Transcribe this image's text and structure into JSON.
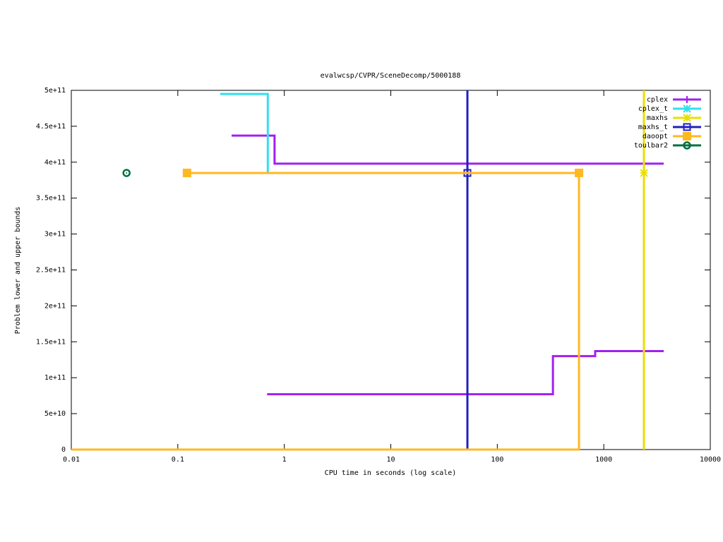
{
  "chart_data": {
    "type": "line",
    "title": "evalwcsp/CVPR/SceneDecomp/5000188",
    "xlabel": "CPU time in seconds (log scale)",
    "ylabel": "Problem lower and upper bounds",
    "xscale": "log",
    "xlim": [
      0.01,
      10000
    ],
    "xticks": [
      0.01,
      0.1,
      1,
      10,
      100,
      1000,
      10000
    ],
    "ylim": [
      0,
      500000000000
    ],
    "yticks": [
      0,
      {
        "value": 50000000000,
        "label": "5e+10"
      },
      {
        "value": 100000000000,
        "label": "1e+11"
      },
      {
        "value": 150000000000,
        "label": "1.5e+11"
      },
      {
        "value": 200000000000,
        "label": "2e+11"
      },
      {
        "value": 250000000000,
        "label": "2.5e+11"
      },
      {
        "value": 300000000000,
        "label": "3e+11"
      },
      {
        "value": 350000000000,
        "label": "3.5e+11"
      },
      {
        "value": 400000000000,
        "label": "4e+11"
      },
      {
        "value": 450000000000,
        "label": "4.5e+11"
      },
      {
        "value": 500000000000,
        "label": "5e+11"
      }
    ],
    "legend": "top-right",
    "series": [
      {
        "name": "cplex",
        "color": "#a020f0",
        "marker": "plus",
        "x": [
          0.32,
          0.81,
          0.81,
          3650,
          null,
          0.69,
          333,
          333,
          830,
          830,
          3650
        ],
        "values": [
          437000000000,
          437000000000,
          398000000000,
          398000000000,
          null,
          77000000000,
          77000000000,
          130000000000,
          130000000000,
          137000000000,
          137000000000
        ]
      },
      {
        "name": "cplex_t",
        "color": "#30e0f0",
        "marker": "star",
        "x": [
          0.25,
          0.7,
          0.7
        ],
        "values": [
          495000000000,
          495000000000,
          385000000000
        ]
      },
      {
        "name": "maxhs",
        "color": "#e8e000",
        "marker": "star",
        "x": [
          2380,
          2380
        ],
        "values": [
          0,
          500000000000
        ],
        "points": {
          "x": [
            2380
          ],
          "values": [
            385000000000
          ]
        }
      },
      {
        "name": "maxhs_t",
        "color": "#2020c0",
        "marker": "open-square",
        "x": [
          52.4,
          52.4
        ],
        "values": [
          0,
          500000000000
        ],
        "points": {
          "x": [
            52.4
          ],
          "values": [
            385000000000
          ]
        }
      },
      {
        "name": "daoopt",
        "color": "#ffb820",
        "marker": "filled-square",
        "x": [
          0.01,
          585,
          585,
          0.122
        ],
        "values": [
          0,
          0,
          385000000000,
          385000000000
        ],
        "points": {
          "x": [
            0.122,
            585
          ],
          "values": [
            385000000000,
            385000000000
          ]
        }
      },
      {
        "name": "toulbar2",
        "color": "#007040",
        "marker": "circle",
        "points": {
          "x": [
            0.033
          ],
          "values": [
            385000000000
          ]
        }
      }
    ]
  }
}
